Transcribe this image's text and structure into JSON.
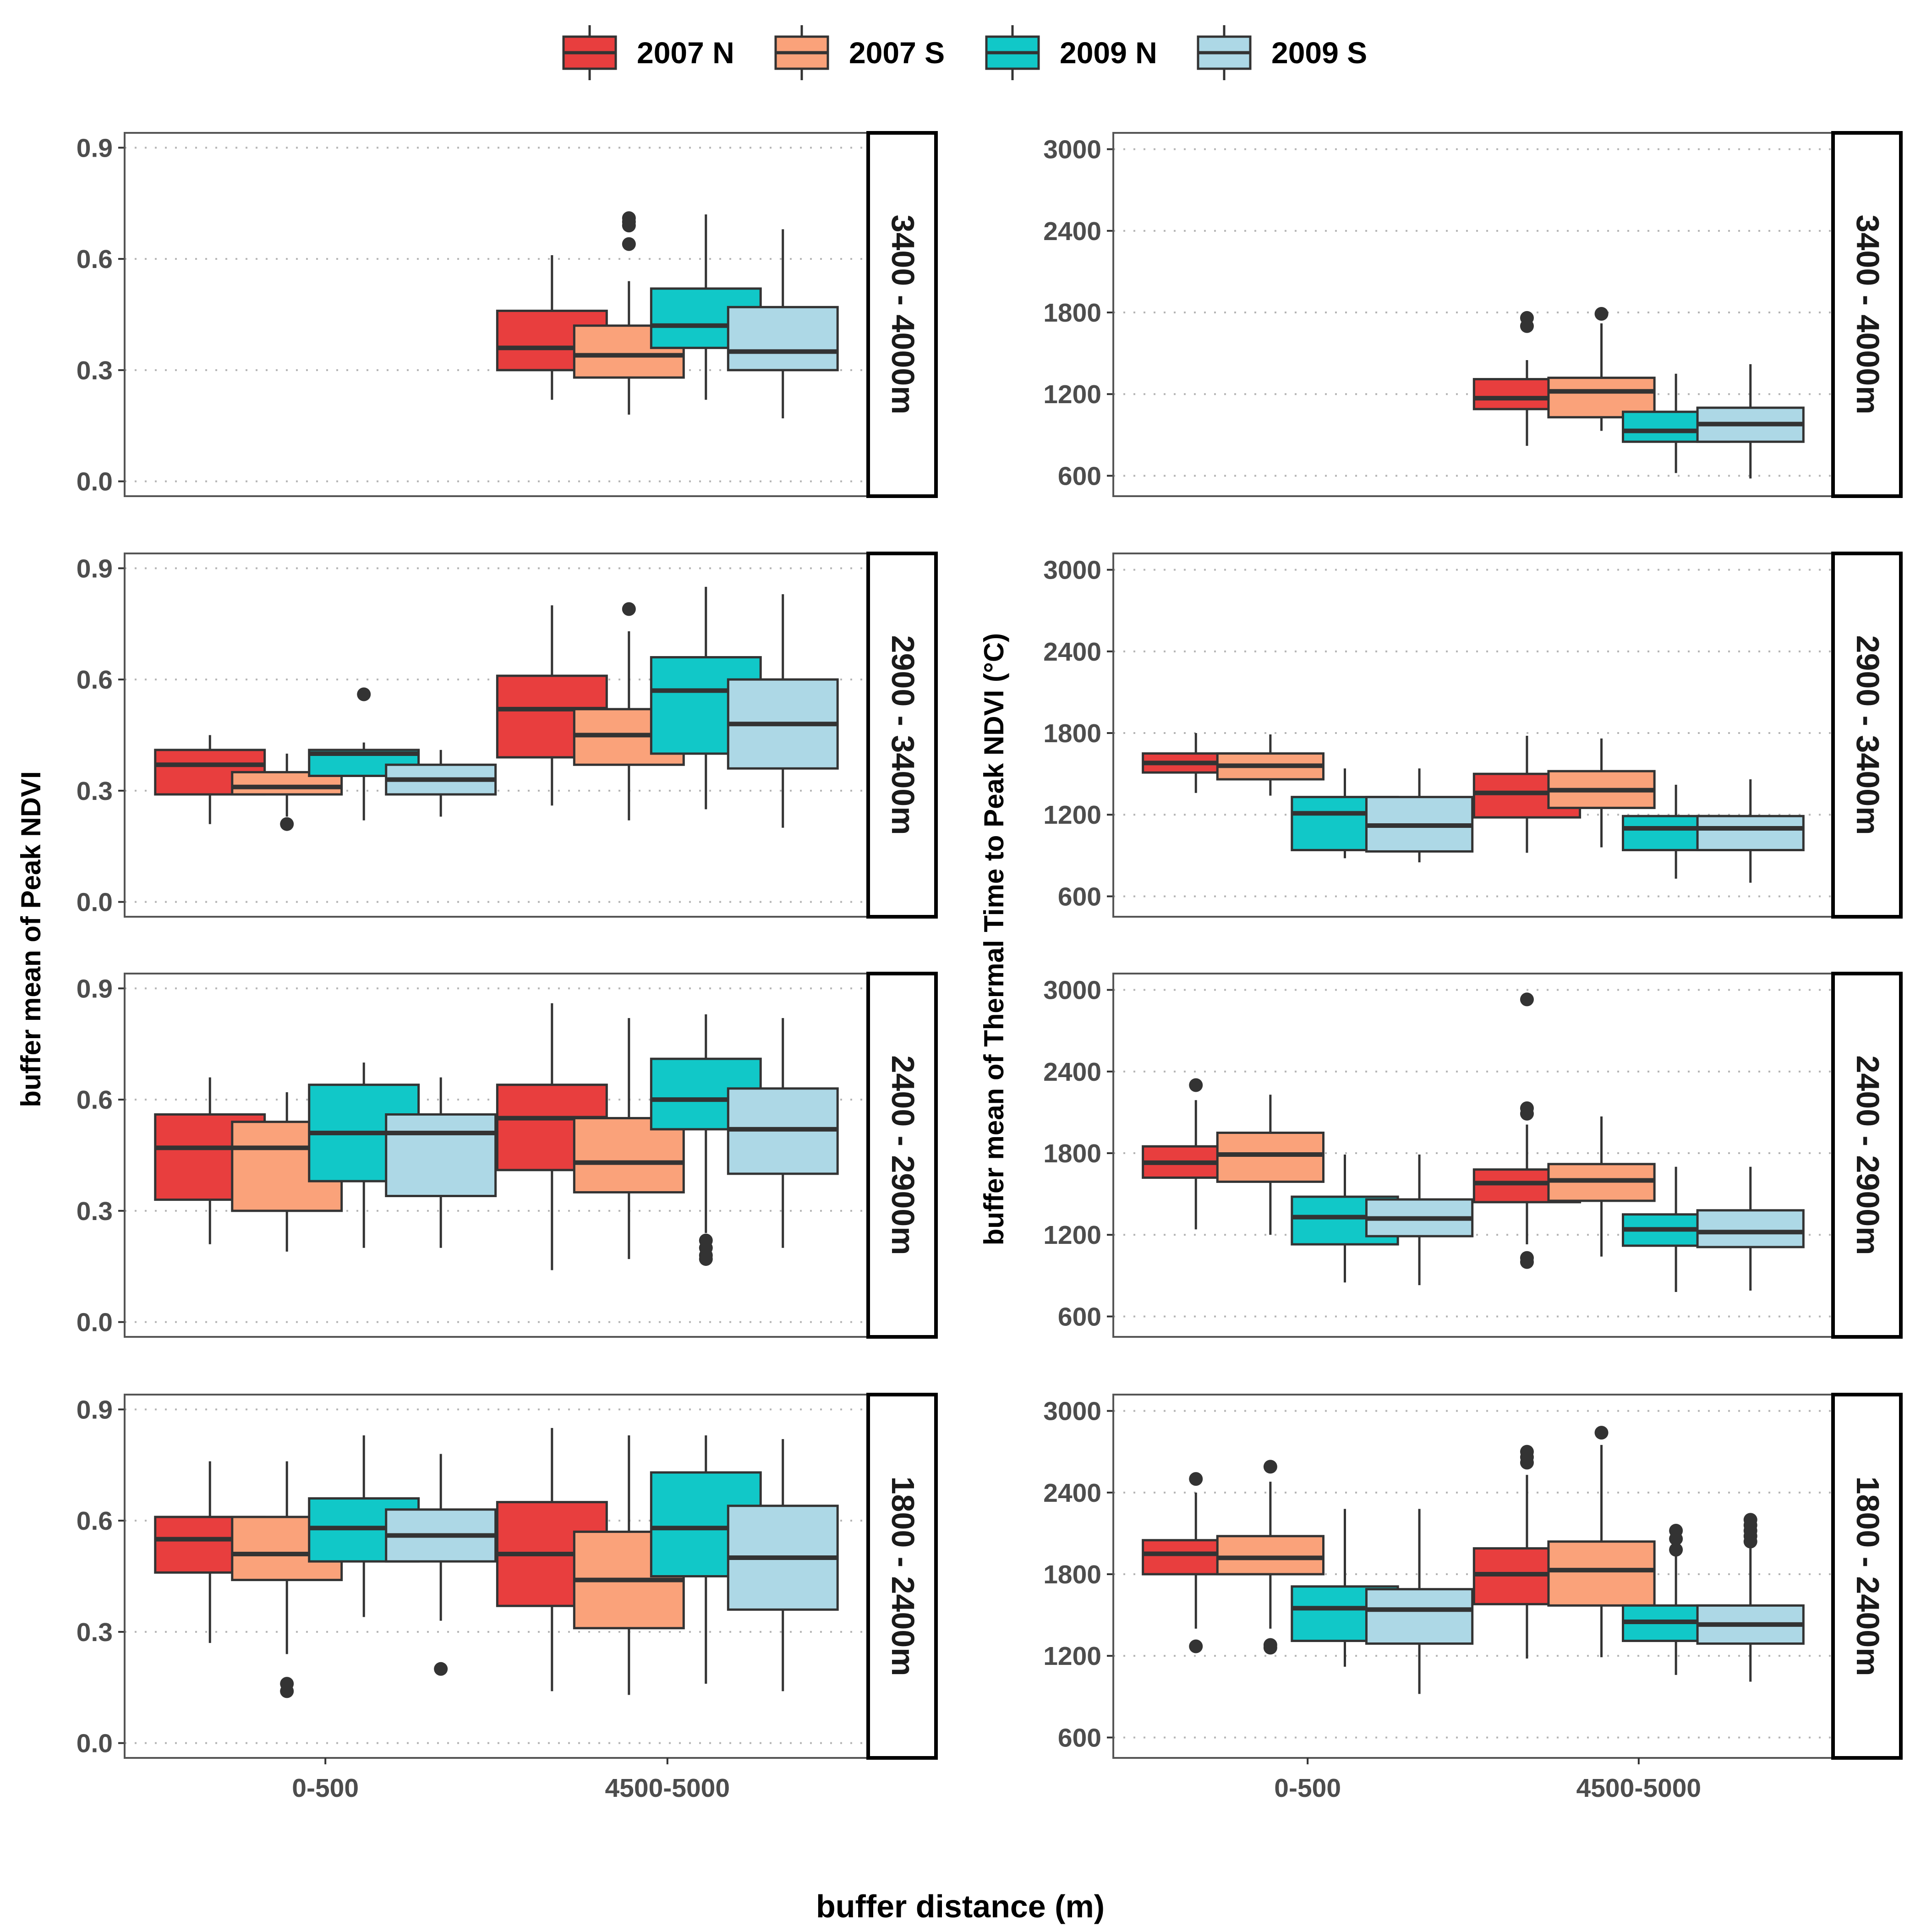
{
  "chart_data": {
    "type": "boxplot",
    "legend": {
      "position": "top",
      "entries": [
        {
          "name": "2007 N",
          "color": "#E83E3E"
        },
        {
          "name": "2007 S",
          "color": "#FAA27A"
        },
        {
          "name": "2009 N",
          "color": "#11C8C8"
        },
        {
          "name": "2009 S",
          "color": "#ADD8E6"
        }
      ]
    },
    "xlabel": "buffer distance (m)",
    "categories": [
      "0-500",
      "4500-5000"
    ],
    "elevation_bands": [
      "3400 - 4000m",
      "2900 - 3400m",
      "2400 - 2900m",
      "1800 - 2400m"
    ],
    "panels": [
      {
        "ylabel": "buffer mean of Peak NDVI",
        "ylim": [
          -0.04,
          0.94
        ],
        "yticks": [
          "0.0",
          "0.3",
          "0.6",
          "0.9"
        ],
        "ytick_values": [
          0,
          0.3,
          0.6,
          0.9
        ],
        "rows": [
          {
            "strip": "3400 - 4000m",
            "groups": [
              [],
              [
                {
                  "min": 0.22,
                  "q1": 0.3,
                  "median": 0.36,
                  "q3": 0.46,
                  "max": 0.61,
                  "outliers": []
                },
                {
                  "min": 0.18,
                  "q1": 0.28,
                  "median": 0.34,
                  "q3": 0.42,
                  "max": 0.54,
                  "outliers": [
                    0.64,
                    0.69,
                    0.7,
                    0.71
                  ]
                },
                {
                  "min": 0.22,
                  "q1": 0.36,
                  "median": 0.42,
                  "q3": 0.52,
                  "max": 0.72,
                  "outliers": []
                },
                {
                  "min": 0.17,
                  "q1": 0.3,
                  "median": 0.35,
                  "q3": 0.47,
                  "max": 0.68,
                  "outliers": []
                }
              ]
            ]
          },
          {
            "strip": "2900 - 3400m",
            "groups": [
              [
                {
                  "min": 0.21,
                  "q1": 0.29,
                  "median": 0.37,
                  "q3": 0.41,
                  "max": 0.45,
                  "outliers": []
                },
                {
                  "min": 0.23,
                  "q1": 0.29,
                  "median": 0.31,
                  "q3": 0.35,
                  "max": 0.4,
                  "outliers": [
                    0.21
                  ]
                },
                {
                  "min": 0.22,
                  "q1": 0.34,
                  "median": 0.4,
                  "q3": 0.41,
                  "max": 0.43,
                  "outliers": [
                    0.56
                  ]
                },
                {
                  "min": 0.23,
                  "q1": 0.29,
                  "median": 0.33,
                  "q3": 0.37,
                  "max": 0.41,
                  "outliers": []
                }
              ],
              [
                {
                  "min": 0.26,
                  "q1": 0.39,
                  "median": 0.52,
                  "q3": 0.61,
                  "max": 0.8,
                  "outliers": []
                },
                {
                  "min": 0.22,
                  "q1": 0.37,
                  "median": 0.45,
                  "q3": 0.52,
                  "max": 0.73,
                  "outliers": [
                    0.79
                  ]
                },
                {
                  "min": 0.25,
                  "q1": 0.4,
                  "median": 0.57,
                  "q3": 0.66,
                  "max": 0.85,
                  "outliers": []
                },
                {
                  "min": 0.2,
                  "q1": 0.36,
                  "median": 0.48,
                  "q3": 0.6,
                  "max": 0.83,
                  "outliers": []
                }
              ]
            ]
          },
          {
            "strip": "2400 - 2900m",
            "groups": [
              [
                {
                  "min": 0.21,
                  "q1": 0.33,
                  "median": 0.47,
                  "q3": 0.56,
                  "max": 0.66,
                  "outliers": []
                },
                {
                  "min": 0.19,
                  "q1": 0.3,
                  "median": 0.47,
                  "q3": 0.54,
                  "max": 0.62,
                  "outliers": []
                },
                {
                  "min": 0.2,
                  "q1": 0.38,
                  "median": 0.51,
                  "q3": 0.64,
                  "max": 0.7,
                  "outliers": []
                },
                {
                  "min": 0.2,
                  "q1": 0.34,
                  "median": 0.51,
                  "q3": 0.56,
                  "max": 0.66,
                  "outliers": []
                }
              ],
              [
                {
                  "min": 0.14,
                  "q1": 0.41,
                  "median": 0.55,
                  "q3": 0.64,
                  "max": 0.86,
                  "outliers": []
                },
                {
                  "min": 0.17,
                  "q1": 0.35,
                  "median": 0.43,
                  "q3": 0.55,
                  "max": 0.82,
                  "outliers": []
                },
                {
                  "min": 0.24,
                  "q1": 0.52,
                  "median": 0.6,
                  "q3": 0.71,
                  "max": 0.83,
                  "outliers": [
                    0.17,
                    0.18,
                    0.2,
                    0.22
                  ]
                },
                {
                  "min": 0.2,
                  "q1": 0.4,
                  "median": 0.52,
                  "q3": 0.63,
                  "max": 0.82,
                  "outliers": []
                }
              ]
            ]
          },
          {
            "strip": "1800 - 2400m",
            "groups": [
              [
                {
                  "min": 0.27,
                  "q1": 0.46,
                  "median": 0.55,
                  "q3": 0.61,
                  "max": 0.76,
                  "outliers": []
                },
                {
                  "min": 0.24,
                  "q1": 0.44,
                  "median": 0.51,
                  "q3": 0.61,
                  "max": 0.76,
                  "outliers": [
                    0.14,
                    0.16
                  ]
                },
                {
                  "min": 0.34,
                  "q1": 0.49,
                  "median": 0.58,
                  "q3": 0.66,
                  "max": 0.83,
                  "outliers": []
                },
                {
                  "min": 0.33,
                  "q1": 0.49,
                  "median": 0.56,
                  "q3": 0.63,
                  "max": 0.78,
                  "outliers": [
                    0.2
                  ]
                }
              ],
              [
                {
                  "min": 0.14,
                  "q1": 0.37,
                  "median": 0.51,
                  "q3": 0.65,
                  "max": 0.85,
                  "outliers": []
                },
                {
                  "min": 0.13,
                  "q1": 0.31,
                  "median": 0.44,
                  "q3": 0.57,
                  "max": 0.83,
                  "outliers": []
                },
                {
                  "min": 0.16,
                  "q1": 0.45,
                  "median": 0.58,
                  "q3": 0.73,
                  "max": 0.83,
                  "outliers": []
                },
                {
                  "min": 0.14,
                  "q1": 0.36,
                  "median": 0.5,
                  "q3": 0.64,
                  "max": 0.82,
                  "outliers": []
                }
              ]
            ]
          }
        ]
      },
      {
        "ylabel": "buffer mean of Thermal Time to Peak NDVI (°C)",
        "ylim": [
          450,
          3120
        ],
        "yticks": [
          "600",
          "1200",
          "1800",
          "2400",
          "3000"
        ],
        "ytick_values": [
          600,
          1200,
          1800,
          2400,
          3000
        ],
        "rows": [
          {
            "strip": "3400 - 4000m",
            "groups": [
              [],
              [
                {
                  "min": 820,
                  "q1": 1090,
                  "median": 1170,
                  "q3": 1310,
                  "max": 1450,
                  "outliers": [
                    1700,
                    1760
                  ]
                },
                {
                  "min": 930,
                  "q1": 1030,
                  "median": 1220,
                  "q3": 1320,
                  "max": 1720,
                  "outliers": [
                    1790
                  ]
                },
                {
                  "min": 620,
                  "q1": 850,
                  "median": 930,
                  "q3": 1070,
                  "max": 1350,
                  "outliers": []
                },
                {
                  "min": 580,
                  "q1": 850,
                  "median": 980,
                  "q3": 1100,
                  "max": 1420,
                  "outliers": []
                }
              ]
            ]
          },
          {
            "strip": "2900 - 3400m",
            "groups": [
              [
                {
                  "min": 1360,
                  "q1": 1510,
                  "median": 1580,
                  "q3": 1650,
                  "max": 1800,
                  "outliers": []
                },
                {
                  "min": 1340,
                  "q1": 1460,
                  "median": 1560,
                  "q3": 1650,
                  "max": 1790,
                  "outliers": []
                },
                {
                  "min": 880,
                  "q1": 940,
                  "median": 1210,
                  "q3": 1330,
                  "max": 1540,
                  "outliers": []
                },
                {
                  "min": 850,
                  "q1": 930,
                  "median": 1120,
                  "q3": 1330,
                  "max": 1540,
                  "outliers": []
                }
              ],
              [
                {
                  "min": 920,
                  "q1": 1180,
                  "median": 1360,
                  "q3": 1500,
                  "max": 1780,
                  "outliers": []
                },
                {
                  "min": 960,
                  "q1": 1250,
                  "median": 1380,
                  "q3": 1520,
                  "max": 1760,
                  "outliers": []
                },
                {
                  "min": 730,
                  "q1": 940,
                  "median": 1100,
                  "q3": 1190,
                  "max": 1420,
                  "outliers": []
                },
                {
                  "min": 700,
                  "q1": 940,
                  "median": 1100,
                  "q3": 1190,
                  "max": 1460,
                  "outliers": []
                }
              ]
            ]
          },
          {
            "strip": "2400 - 2900m",
            "groups": [
              [
                {
                  "min": 1240,
                  "q1": 1620,
                  "median": 1730,
                  "q3": 1850,
                  "max": 2190,
                  "outliers": [
                    2300
                  ]
                },
                {
                  "min": 1200,
                  "q1": 1590,
                  "median": 1790,
                  "q3": 1950,
                  "max": 2230,
                  "outliers": []
                },
                {
                  "min": 850,
                  "q1": 1130,
                  "median": 1330,
                  "q3": 1480,
                  "max": 1790,
                  "outliers": []
                },
                {
                  "min": 830,
                  "q1": 1190,
                  "median": 1320,
                  "q3": 1460,
                  "max": 1790,
                  "outliers": []
                }
              ],
              [
                {
                  "min": 1130,
                  "q1": 1440,
                  "median": 1580,
                  "q3": 1680,
                  "max": 2010,
                  "outliers": [
                    1000,
                    1030,
                    2090,
                    2130,
                    2930
                  ]
                },
                {
                  "min": 1040,
                  "q1": 1450,
                  "median": 1600,
                  "q3": 1720,
                  "max": 2070,
                  "outliers": []
                },
                {
                  "min": 780,
                  "q1": 1120,
                  "median": 1240,
                  "q3": 1350,
                  "max": 1700,
                  "outliers": []
                },
                {
                  "min": 790,
                  "q1": 1110,
                  "median": 1220,
                  "q3": 1380,
                  "max": 1700,
                  "outliers": []
                }
              ]
            ]
          },
          {
            "strip": "1800 - 2400m",
            "groups": [
              [
                {
                  "min": 1400,
                  "q1": 1800,
                  "median": 1950,
                  "q3": 2050,
                  "max": 2400,
                  "outliers": [
                    1270,
                    2500
                  ]
                },
                {
                  "min": 1400,
                  "q1": 1800,
                  "median": 1920,
                  "q3": 2080,
                  "max": 2480,
                  "outliers": [
                    1260,
                    1280,
                    2590
                  ]
                },
                {
                  "min": 1120,
                  "q1": 1310,
                  "median": 1550,
                  "q3": 1710,
                  "max": 2280,
                  "outliers": []
                },
                {
                  "min": 920,
                  "q1": 1290,
                  "median": 1540,
                  "q3": 1690,
                  "max": 2280,
                  "outliers": []
                }
              ],
              [
                {
                  "min": 1180,
                  "q1": 1580,
                  "median": 1800,
                  "q3": 1990,
                  "max": 2530,
                  "outliers": [
                    2620,
                    2660,
                    2700
                  ]
                },
                {
                  "min": 1190,
                  "q1": 1570,
                  "median": 1830,
                  "q3": 2040,
                  "max": 2750,
                  "outliers": [
                    2840
                  ]
                },
                {
                  "min": 1060,
                  "q1": 1310,
                  "median": 1450,
                  "q3": 1570,
                  "max": 1950,
                  "outliers": [
                    1980,
                    2060,
                    2120
                  ]
                },
                {
                  "min": 1010,
                  "q1": 1290,
                  "median": 1430,
                  "q3": 1570,
                  "max": 1990,
                  "outliers": [
                    2040,
                    2080,
                    2120,
                    2160,
                    2200
                  ]
                }
              ]
            ]
          }
        ]
      }
    ]
  }
}
